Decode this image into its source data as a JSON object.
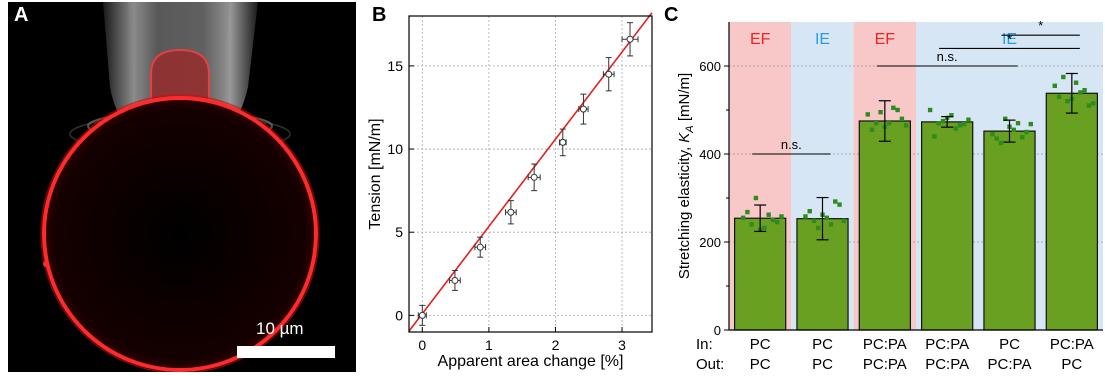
{
  "panel_a": {
    "letter": "A",
    "scale_label": "10 µm"
  },
  "panel_b": {
    "letter": "B"
  },
  "panel_c": {
    "letter": "C"
  },
  "chart_data": [
    {
      "type": "scatter",
      "xlabel": "Apparent area change [%]",
      "ylabel": "Tension [mN/m]",
      "xlim": [
        -0.2,
        3.45
      ],
      "ylim": [
        -1,
        18
      ],
      "xticks": [
        0,
        1,
        2,
        3
      ],
      "yticks": [
        0,
        5,
        10,
        15
      ],
      "grid": true,
      "points": [
        {
          "x": 0.0,
          "y": 0.0,
          "xerr": 0.06,
          "yerr": 0.6
        },
        {
          "x": 0.49,
          "y": 2.1,
          "xerr": 0.08,
          "yerr": 0.6
        },
        {
          "x": 0.87,
          "y": 4.1,
          "xerr": 0.08,
          "yerr": 0.6
        },
        {
          "x": 1.33,
          "y": 6.2,
          "xerr": 0.08,
          "yerr": 0.7
        },
        {
          "x": 1.68,
          "y": 8.3,
          "xerr": 0.09,
          "yerr": 0.8
        },
        {
          "x": 2.11,
          "y": 10.4,
          "xerr": 0.05,
          "yerr": 0.8
        },
        {
          "x": 2.42,
          "y": 12.4,
          "xerr": 0.07,
          "yerr": 0.9
        },
        {
          "x": 2.8,
          "y": 14.5,
          "xerr": 0.08,
          "yerr": 1.0
        },
        {
          "x": 3.12,
          "y": 16.6,
          "xerr": 0.12,
          "yerr": 1.0
        }
      ],
      "fit_line": {
        "x": [
          -0.2,
          3.45
        ],
        "y": [
          -0.95,
          18.2
        ],
        "color": "#e32020"
      }
    },
    {
      "type": "bar",
      "ylabel": "Stretching elasticity, K_A [mN/m]",
      "ylim": [
        0,
        700
      ],
      "yticks": [
        0,
        200,
        400,
        600
      ],
      "grid": true,
      "categories": [
        {
          "in": "PC",
          "out": "PC"
        },
        {
          "in": "PC",
          "out": "PC"
        },
        {
          "in": "PC:PA",
          "out": "PC:PA"
        },
        {
          "in": "PC:PA",
          "out": "PC:PA"
        },
        {
          "in": "PC",
          "out": "PC:PA"
        },
        {
          "in": "PC:PA",
          "out": "PC"
        }
      ],
      "row_labels": {
        "in": "In:",
        "out": "Out:"
      },
      "values": [
        254,
        253,
        475,
        473,
        452,
        538
      ],
      "errors": [
        30,
        48,
        46,
        12,
        25,
        45
      ],
      "bar_color": "#6aa022",
      "dot_color": "#2e8b1e",
      "scatter_points": [
        [
          255,
          240,
          228,
          262,
          245,
          268,
          300,
          232,
          250,
          258
        ],
        [
          258,
          248,
          262,
          240,
          285,
          270,
          232,
          255,
          292,
          248
        ],
        [
          490,
          470,
          462,
          505,
          480,
          455,
          495,
          470,
          500,
          465
        ],
        [
          500,
          470,
          482,
          458,
          468,
          440,
          475,
          488,
          465,
          478
        ],
        [
          445,
          425,
          462,
          470,
          450,
          435,
          480,
          455,
          438,
          468
        ],
        [
          555,
          575,
          525,
          540,
          510,
          530,
          520,
          562,
          545,
          515
        ]
      ],
      "bands": [
        {
          "label": "EF",
          "color": "#f8c8c8",
          "label_color": "#e8262a",
          "from": 0,
          "to": 0
        },
        {
          "label": "IE",
          "color": "#d6e6f4",
          "label_color": "#2a9de0",
          "from": 1,
          "to": 1
        },
        {
          "label": "EF",
          "color": "#f8c8c8",
          "label_color": "#e8262a",
          "from": 2,
          "to": 2
        },
        {
          "label": "IE",
          "color": "#d6e6f4",
          "label_color": "#2a9de0",
          "from": 3,
          "to": 5
        }
      ],
      "significance": [
        {
          "from": 0,
          "to": 1,
          "y": 400,
          "label": "n.s."
        },
        {
          "from": 2,
          "to": 4,
          "y": 600,
          "label": "n.s."
        },
        {
          "from": 3,
          "to": 5,
          "y": 640,
          "label": "*"
        },
        {
          "from": 4,
          "to": 5,
          "y": 670,
          "label": "*"
        }
      ]
    }
  ]
}
